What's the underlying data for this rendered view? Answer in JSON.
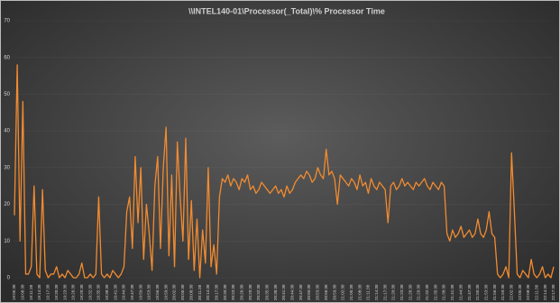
{
  "chart_data": {
    "type": "line",
    "title": "\\\\INTEL140-01\\Processor(_Total)\\% Processor Time",
    "color": "#f28b30",
    "ylim": [
      0,
      70
    ],
    "yticks": [
      0,
      10,
      20,
      30,
      40,
      50,
      60,
      70
    ],
    "grid": true,
    "categories": [
      "19:05:38",
      null,
      null,
      "19:08:38",
      null,
      null,
      "19:11:38",
      null,
      null,
      "19:14:38",
      null,
      null,
      "19:17:38",
      null,
      null,
      "19:20:38",
      null,
      null,
      "19:23:38",
      null,
      null,
      "19:26:38",
      null,
      null,
      "19:29:38",
      null,
      null,
      "19:32:38",
      null,
      null,
      "19:35:38",
      null,
      null,
      "19:38:38",
      null,
      null,
      "19:41:38",
      null,
      null,
      "19:44:38",
      null,
      null,
      "19:47:38",
      null,
      null,
      "19:50:38",
      null,
      null,
      "19:53:38",
      null,
      null,
      "19:56:38",
      null,
      null,
      "19:59:38",
      null,
      null,
      "20:02:38",
      null,
      null,
      "20:05:38",
      null,
      null,
      "20:08:38",
      null,
      null,
      "20:11:38",
      null,
      null,
      "20:14:38",
      null,
      null,
      "20:17:38",
      null,
      null,
      "20:20:38",
      null,
      null,
      "20:23:38",
      null,
      null,
      "20:26:38",
      null,
      null,
      "20:29:38",
      null,
      null,
      "20:32:38",
      null,
      null,
      "20:35:38",
      null,
      null,
      "20:38:38",
      null,
      null,
      "20:41:38",
      null,
      null,
      "20:44:38",
      null,
      null,
      "20:47:38",
      null,
      null,
      "20:50:38",
      null,
      null,
      "20:53:38",
      null,
      null,
      "20:56:38",
      null,
      null,
      "20:59:38",
      null,
      null,
      "21:02:38",
      null,
      null,
      "21:05:38",
      null,
      null,
      "21:08:38",
      null,
      null,
      "21:11:38",
      null,
      null,
      "21:14:38",
      null,
      null,
      "21:17:38",
      null,
      null,
      "21:20:38",
      null,
      null,
      "21:23:38",
      null,
      null,
      "21:26:38",
      null,
      null,
      "21:29:38",
      null,
      null,
      "21:32:38",
      null,
      null,
      "21:35:38",
      null,
      null,
      "21:38:38",
      null,
      null,
      "21:41:38",
      null,
      null,
      "21:44:38",
      null,
      null,
      "21:47:38",
      null,
      null,
      "21:50:38",
      null,
      null,
      "21:53:38",
      null,
      null,
      "21:56:38",
      null,
      null,
      "21:59:38",
      null,
      null,
      "22:02:38",
      null,
      null,
      "22:05:38",
      null,
      null,
      "22:08:38",
      null,
      null,
      "22:11:38",
      null,
      null,
      "22:14:38",
      null,
      null,
      "22:17:38"
    ],
    "values": [
      17,
      58,
      10,
      48,
      1,
      1,
      3,
      25,
      1,
      0,
      24,
      2,
      0,
      1,
      1,
      3,
      0,
      1,
      0,
      2,
      1,
      0,
      0,
      1,
      4,
      0,
      0,
      1,
      0,
      1,
      22,
      1,
      0,
      1,
      0,
      2,
      1,
      0,
      1,
      3,
      18,
      22,
      8,
      33,
      15,
      30,
      5,
      20,
      12,
      2,
      25,
      33,
      8,
      30,
      41,
      6,
      28,
      3,
      37,
      22,
      10,
      38,
      5,
      21,
      2,
      16,
      0,
      13,
      4,
      30,
      3,
      9,
      1,
      22,
      27,
      26,
      28,
      25,
      27,
      26,
      24,
      27,
      26,
      28,
      24,
      25,
      23,
      24,
      26,
      25,
      24,
      23,
      24,
      25,
      23,
      24,
      22,
      25,
      23,
      24,
      26,
      27,
      28,
      27,
      29,
      28,
      26,
      27,
      30,
      28,
      27,
      35,
      28,
      29,
      27,
      20,
      28,
      27,
      26,
      25,
      27,
      26,
      24,
      28,
      25,
      26,
      23,
      27,
      25,
      24,
      26,
      25,
      24,
      15,
      25,
      26,
      24,
      25,
      27,
      25,
      26,
      25,
      24,
      26,
      25,
      26,
      27,
      25,
      24,
      26,
      25,
      24,
      26,
      25,
      12,
      10,
      13,
      11,
      12,
      14,
      11,
      12,
      13,
      11,
      12,
      16,
      12,
      11,
      13,
      18,
      12,
      11,
      1,
      0,
      1,
      3,
      0,
      34,
      18,
      1,
      0,
      2,
      1,
      0,
      5,
      1,
      0,
      1,
      3,
      0,
      1,
      0,
      3
    ]
  }
}
